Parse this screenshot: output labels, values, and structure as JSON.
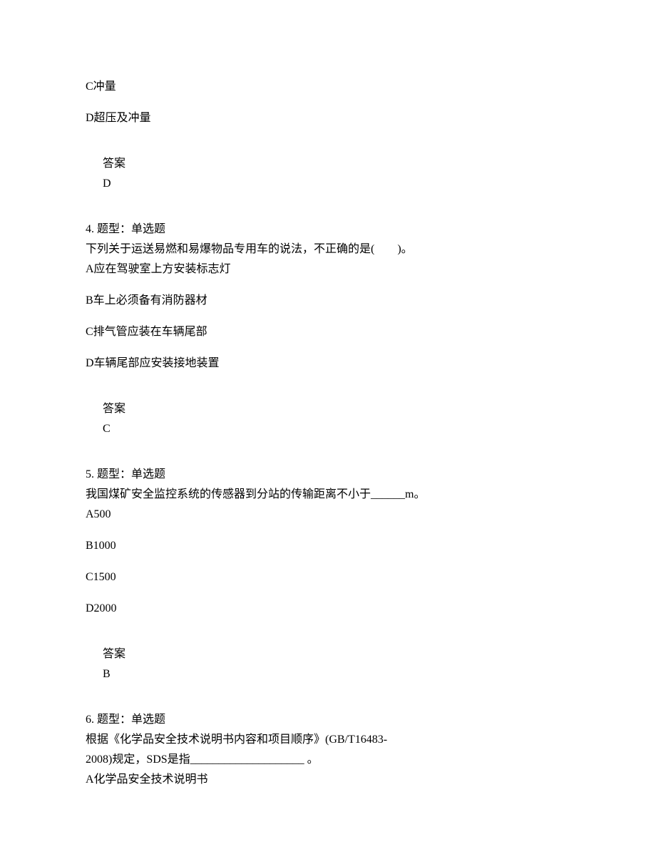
{
  "q3": {
    "optC": "C冲量",
    "optD": "D超压及冲量",
    "ans_label": "答案",
    "ans": "D"
  },
  "q4": {
    "header": "4. 题型：单选题",
    "stem": "下列关于运送易燃和易爆物品专用车的说法，不正确的是(　　)。",
    "optA": "A应在驾驶室上方安装标志灯",
    "optB": "B车上必须备有消防器材",
    "optC": "C排气管应装在车辆尾部",
    "optD": "D车辆尾部应安装接地装置",
    "ans_label": "答案",
    "ans": "C"
  },
  "q5": {
    "header": "5. 题型：单选题",
    "stem": "我国煤矿安全监控系统的传感器到分站的传输距离不小于______m。",
    "optA": "A500",
    "optB": "B1000",
    "optC": "C1500",
    "optD": "D2000",
    "ans_label": "答案",
    "ans": "B"
  },
  "q6": {
    "header": "6. 题型：单选题",
    "stem1": "根据《化学品安全技术说明书内容和项目顺序》(GB/T16483-",
    "stem2": "2008)规定，SDS是指____________________ 。",
    "optA": "A化学品安全技术说明书"
  }
}
